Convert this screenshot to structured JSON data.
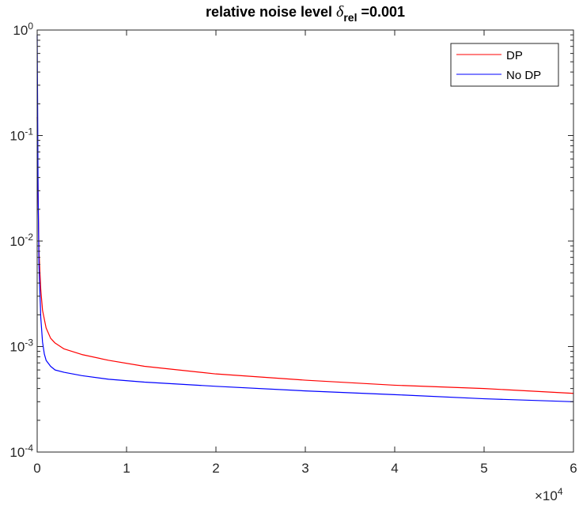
{
  "chart_data": {
    "type": "line",
    "title": {
      "prefix": "relative noise level ",
      "symbol": "δ",
      "subscript": "rel",
      "suffix": " =0.001"
    },
    "xlabel": "",
    "ylabel": "",
    "x_multiplier": "×10",
    "x_multiplier_exponent": "4",
    "xlim": [
      0,
      6
    ],
    "ylim": [
      0.0001,
      1
    ],
    "yscale": "log",
    "grid": false,
    "legend_location": "top-right",
    "x_ticks": [
      0,
      1,
      2,
      3,
      4,
      5,
      6
    ],
    "x_tick_labels": [
      "0",
      "1",
      "2",
      "3",
      "4",
      "5",
      "6"
    ],
    "y_ticks": [
      {
        "value": 0.0001,
        "base": "10",
        "exp": "-4"
      },
      {
        "value": 0.001,
        "base": "10",
        "exp": "-3"
      },
      {
        "value": 0.01,
        "base": "10",
        "exp": "-2"
      },
      {
        "value": 0.1,
        "base": "10",
        "exp": "-1"
      },
      {
        "value": 1,
        "base": "10",
        "exp": "0"
      }
    ],
    "series": [
      {
        "name": "DP",
        "color": "#ff0000",
        "x": [
          0,
          0.01,
          0.02,
          0.04,
          0.06,
          0.1,
          0.15,
          0.2,
          0.3,
          0.5,
          0.8,
          1.2,
          2.0,
          3.0,
          4.0,
          5.0,
          6.0
        ],
        "y": [
          0.15,
          0.03,
          0.008,
          0.0035,
          0.0022,
          0.0015,
          0.0012,
          0.00108,
          0.00095,
          0.00084,
          0.00074,
          0.00065,
          0.00055,
          0.00048,
          0.00043,
          0.0004,
          0.00036
        ]
      },
      {
        "name": "No DP",
        "color": "#0000ff",
        "x": [
          0,
          0.005,
          0.01,
          0.02,
          0.04,
          0.06,
          0.08,
          0.1,
          0.15,
          0.2,
          0.3,
          0.5,
          0.8,
          1.2,
          2.0,
          3.0,
          4.0,
          5.0,
          6.0
        ],
        "y": [
          0.9,
          0.2,
          0.03,
          0.006,
          0.0019,
          0.0011,
          0.00085,
          0.00074,
          0.00065,
          0.0006,
          0.00057,
          0.00053,
          0.00049,
          0.00046,
          0.00042,
          0.00038,
          0.00035,
          0.00032,
          0.0003
        ]
      }
    ]
  }
}
